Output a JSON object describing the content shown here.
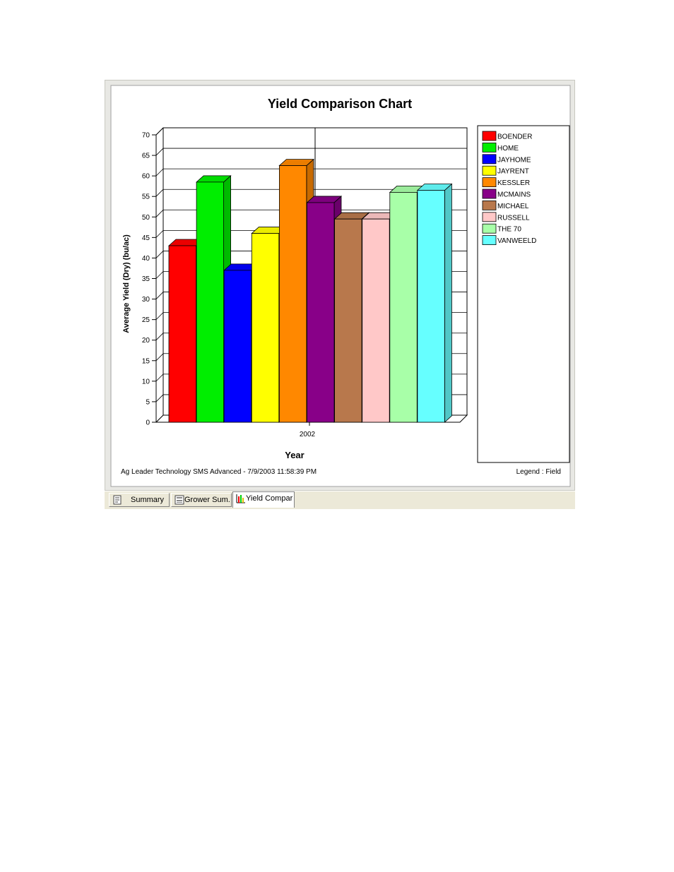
{
  "chart_data": {
    "type": "bar",
    "title": "Yield Comparison Chart",
    "xlabel": "Year",
    "ylabel": "Average Yield (Dry) (bu/ac)",
    "categories": [
      "2002"
    ],
    "ylim": [
      0,
      70
    ],
    "yticks": [
      0,
      5,
      10,
      15,
      20,
      25,
      30,
      35,
      40,
      45,
      50,
      55,
      60,
      65,
      70
    ],
    "grid": true,
    "legend_position": "right",
    "series": [
      {
        "name": "BOENDER",
        "values": [
          43
        ],
        "color": "#ff0000"
      },
      {
        "name": "HOME",
        "values": [
          58.5
        ],
        "color": "#00ee00"
      },
      {
        "name": "JAYHOME",
        "values": [
          37
        ],
        "color": "#0000ff"
      },
      {
        "name": "JAYRENT",
        "values": [
          46
        ],
        "color": "#ffff00"
      },
      {
        "name": "KESSLER",
        "values": [
          62.5
        ],
        "color": "#ff8800"
      },
      {
        "name": "MCMAINS",
        "values": [
          53.5
        ],
        "color": "#880088"
      },
      {
        "name": "MICHAEL",
        "values": [
          49.5
        ],
        "color": "#b8784c"
      },
      {
        "name": "RUSSELL",
        "values": [
          49.5
        ],
        "color": "#ffc8c8"
      },
      {
        "name": "THE 70",
        "values": [
          56
        ],
        "color": "#a8ffa8"
      },
      {
        "name": "VANWEELD",
        "values": [
          56.5
        ],
        "color": "#66ffff"
      }
    ],
    "footer_left": "Ag Leader Technology SMS Advanced - 7/9/2003 11:58:39 PM",
    "footer_right": "Legend : Field"
  },
  "tabs": [
    {
      "label": "Summary",
      "icon": "report-icon",
      "active": false
    },
    {
      "label": "Grower Sum...",
      "icon": "document-icon",
      "active": false
    },
    {
      "label": "Yield Compar...",
      "icon": "bar-chart-icon",
      "active": true
    }
  ]
}
